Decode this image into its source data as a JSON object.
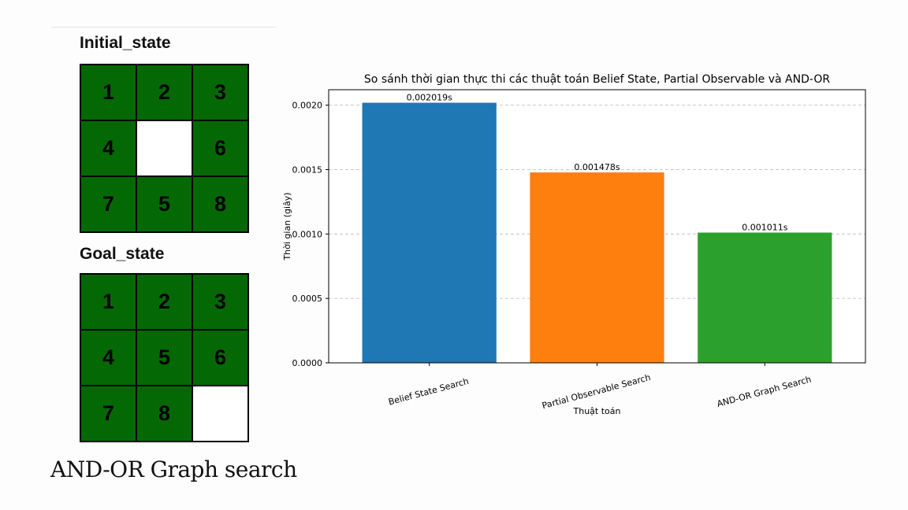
{
  "left_panel": {
    "initial_title": "Initial_state",
    "goal_title": "Goal_state",
    "initial_state": [
      "1",
      "2",
      "3",
      "4",
      "",
      "6",
      "7",
      "5",
      "8"
    ],
    "goal_state": [
      "1",
      "2",
      "3",
      "4",
      "5",
      "6",
      "7",
      "8",
      ""
    ],
    "tile_color": "#046904",
    "caption": "AND-OR Graph search"
  },
  "chart_data": {
    "type": "bar",
    "title": "So sánh thời gian thực thi các thuật toán Belief State, Partial Observable và AND-OR",
    "xlabel": "Thuật toán",
    "ylabel": "Thời gian (giây)",
    "categories": [
      "Belief State Search",
      "Partial Observable Search",
      "AND-OR Graph Search"
    ],
    "values": [
      0.002019,
      0.001478,
      0.001011
    ],
    "data_labels": [
      "0.002019s",
      "0.001478s",
      "0.001011s"
    ],
    "colors": [
      "#1f77b4",
      "#ff7f0e",
      "#2ca02c"
    ],
    "ylim": [
      0,
      0.00212
    ],
    "yticks": [
      "0.0000",
      "0.0005",
      "0.0010",
      "0.0015",
      "0.0020"
    ],
    "ytick_values": [
      0,
      0.0005,
      0.001,
      0.0015,
      0.002
    ],
    "grid": "horizontal dashed",
    "x_tick_rotation": 15
  }
}
